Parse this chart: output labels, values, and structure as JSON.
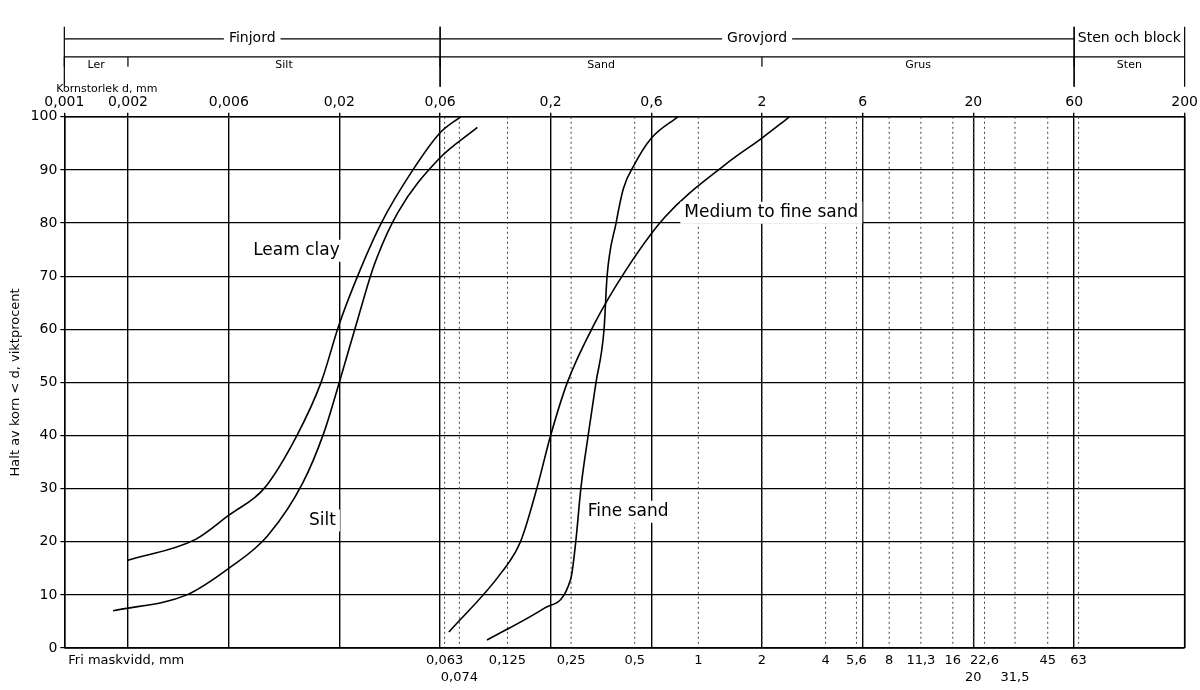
{
  "chart_data": {
    "type": "line",
    "xlabel": "Kornstorlek d, mm",
    "ylabel": "Halt av korn < d, viktprocent",
    "log": "x",
    "xlim": [
      0.001,
      200
    ],
    "xticks": [
      {
        "value": 0.001,
        "label": "0,001"
      },
      {
        "value": 0.002,
        "label": "0,002"
      },
      {
        "value": 0.006,
        "label": "0,006"
      },
      {
        "value": 0.02,
        "label": "0,02"
      },
      {
        "value": 0.06,
        "label": "0,06"
      },
      {
        "value": 0.2,
        "label": "0,2"
      },
      {
        "value": 0.6,
        "label": "0,6"
      },
      2,
      6,
      20,
      60,
      200
    ],
    "ylim": [
      0,
      100
    ],
    "yticks": [
      0,
      10,
      20,
      30,
      40,
      50,
      60,
      70,
      80,
      90,
      100
    ],
    "grid": true,
    "marker": "none",
    "line_style": "solid",
    "series": [
      {
        "name": "Leam clay",
        "color": "#000000",
        "x": [
          0.002,
          0.0042,
          0.006,
          0.0088,
          0.0126,
          0.0164,
          0.02,
          0.025,
          0.0316,
          0.0446,
          0.06,
          0.075
        ],
        "values": [
          16.5,
          20.5,
          25,
          30,
          40,
          50,
          61,
          71,
          80,
          90,
          97,
          100
        ]
      },
      {
        "name": "Silt",
        "color": "#000000",
        "x": [
          0.0017,
          0.0038,
          0.006,
          0.0091,
          0.0134,
          0.0169,
          0.02,
          0.0245,
          0.0292,
          0.0379,
          0.059,
          0.09
        ],
        "values": [
          7,
          10,
          15,
          21,
          31,
          40.5,
          50,
          62,
          72,
          82,
          92,
          98
        ]
      },
      {
        "name": "Medium to fine sand",
        "color": "#000000",
        "x": [
          0.066,
          0.116,
          0.144,
          0.172,
          0.2,
          0.24,
          0.322,
          0.452,
          0.69,
          1.34,
          2,
          2.7
        ],
        "values": [
          3,
          14,
          20,
          30,
          40,
          50,
          61,
          71,
          81,
          91,
          96,
          100
        ]
      },
      {
        "name": "Fine sand",
        "color": "#000000",
        "x": [
          0.1,
          0.187,
          0.249,
          0.263,
          0.278,
          0.301,
          0.328,
          0.358,
          0.37,
          0.408,
          0.442,
          0.498,
          0.6,
          0.8
        ],
        "values": [
          1.5,
          7.5,
          13,
          20,
          30,
          40,
          50,
          60,
          70,
          80,
          86.5,
          91,
          96,
          100
        ]
      }
    ],
    "ref_lines": [
      {
        "axis": "x",
        "value": 0.063,
        "label": "0,063",
        "line_style": "dotted"
      },
      {
        "axis": "x",
        "value": 0.074,
        "label": "0,074",
        "line_style": "dotted"
      },
      {
        "axis": "x",
        "value": 0.125,
        "label": "0,125",
        "line_style": "dotted"
      },
      {
        "axis": "x",
        "value": 0.25,
        "label": "0,25",
        "line_style": "dotted"
      },
      {
        "axis": "x",
        "value": 0.5,
        "label": "0,5",
        "line_style": "dotted"
      },
      {
        "axis": "x",
        "value": 1,
        "label": "1",
        "line_style": "dotted"
      },
      {
        "axis": "x",
        "value": 2,
        "label": "2",
        "line_style": "dotted"
      },
      {
        "axis": "x",
        "value": 4,
        "label": "4",
        "line_style": "dotted"
      },
      {
        "axis": "x",
        "value": 5.6,
        "label": "5,6",
        "line_style": "dotted"
      },
      {
        "axis": "x",
        "value": 8,
        "label": "8",
        "line_style": "dotted"
      },
      {
        "axis": "x",
        "value": 11.3,
        "label": "11,3",
        "line_style": "dotted"
      },
      {
        "axis": "x",
        "value": 16,
        "label": "16",
        "line_style": "dotted"
      },
      {
        "axis": "x",
        "value": 20,
        "label": "20",
        "line_style": "dotted"
      },
      {
        "axis": "x",
        "value": 22.6,
        "label": "22,6",
        "line_style": "dotted"
      },
      {
        "axis": "x",
        "value": 31.5,
        "label": "31,5",
        "line_style": "dotted"
      },
      {
        "axis": "x",
        "value": 45,
        "label": "45",
        "line_style": "dotted"
      },
      {
        "axis": "x",
        "value": 63,
        "label": "63",
        "line_style": "dotted"
      }
    ],
    "annotations": [
      "Fri maskvidd, mm",
      "Finjord",
      "Grovjord",
      "Sten och block",
      "Ler",
      "Silt",
      "Sand",
      "Grus",
      "Sten"
    ]
  }
}
